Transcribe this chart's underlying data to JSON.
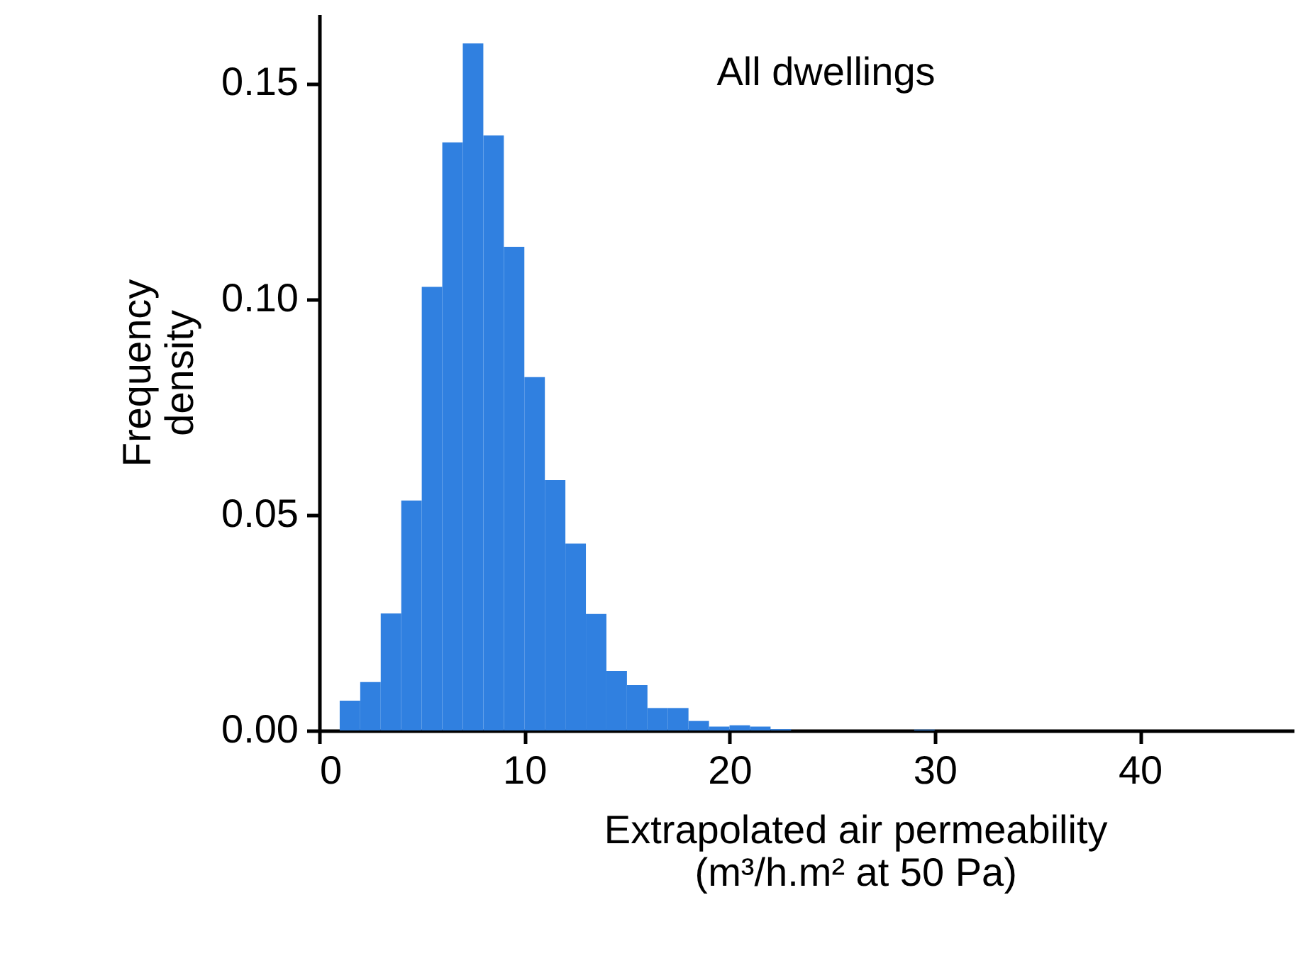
{
  "chart_data": {
    "type": "histogram",
    "xlabel": "Extrapolated air permeability\n(m³/h.m² at 50 Pa)",
    "ylabel": "Frequency\ndensity",
    "annotations": [
      "All dwellings"
    ],
    "bins": [
      1,
      2,
      3,
      4,
      5,
      6,
      7,
      8,
      9,
      10,
      11,
      12,
      13,
      14,
      15,
      16,
      17,
      18,
      19,
      20,
      21,
      22,
      23,
      24,
      25,
      26,
      27,
      28,
      29,
      30
    ],
    "values": [
      0.0069,
      0.0112,
      0.0271,
      0.0533,
      0.1028,
      0.1363,
      0.1592,
      0.1379,
      0.1121,
      0.0819,
      0.058,
      0.0433,
      0.027,
      0.0138,
      0.0105,
      0.0052,
      0.0052,
      0.0022,
      0.0009,
      0.0012,
      0.0009,
      0.0003,
      0,
      0,
      0,
      0,
      0,
      0,
      0.0002
    ],
    "color": "#3080e0",
    "xlim": [
      0,
      47.5
    ],
    "ylim": [
      0,
      0.166
    ],
    "xticks": [
      0,
      10,
      20,
      30,
      40
    ],
    "yticks": [
      {
        "value": 0,
        "label": "0.00"
      },
      {
        "value": 0.05,
        "label": "0.05"
      },
      {
        "value": 0.1,
        "label": "0.10"
      },
      {
        "value": 0.15,
        "label": "0.15"
      }
    ],
    "grid": false
  }
}
